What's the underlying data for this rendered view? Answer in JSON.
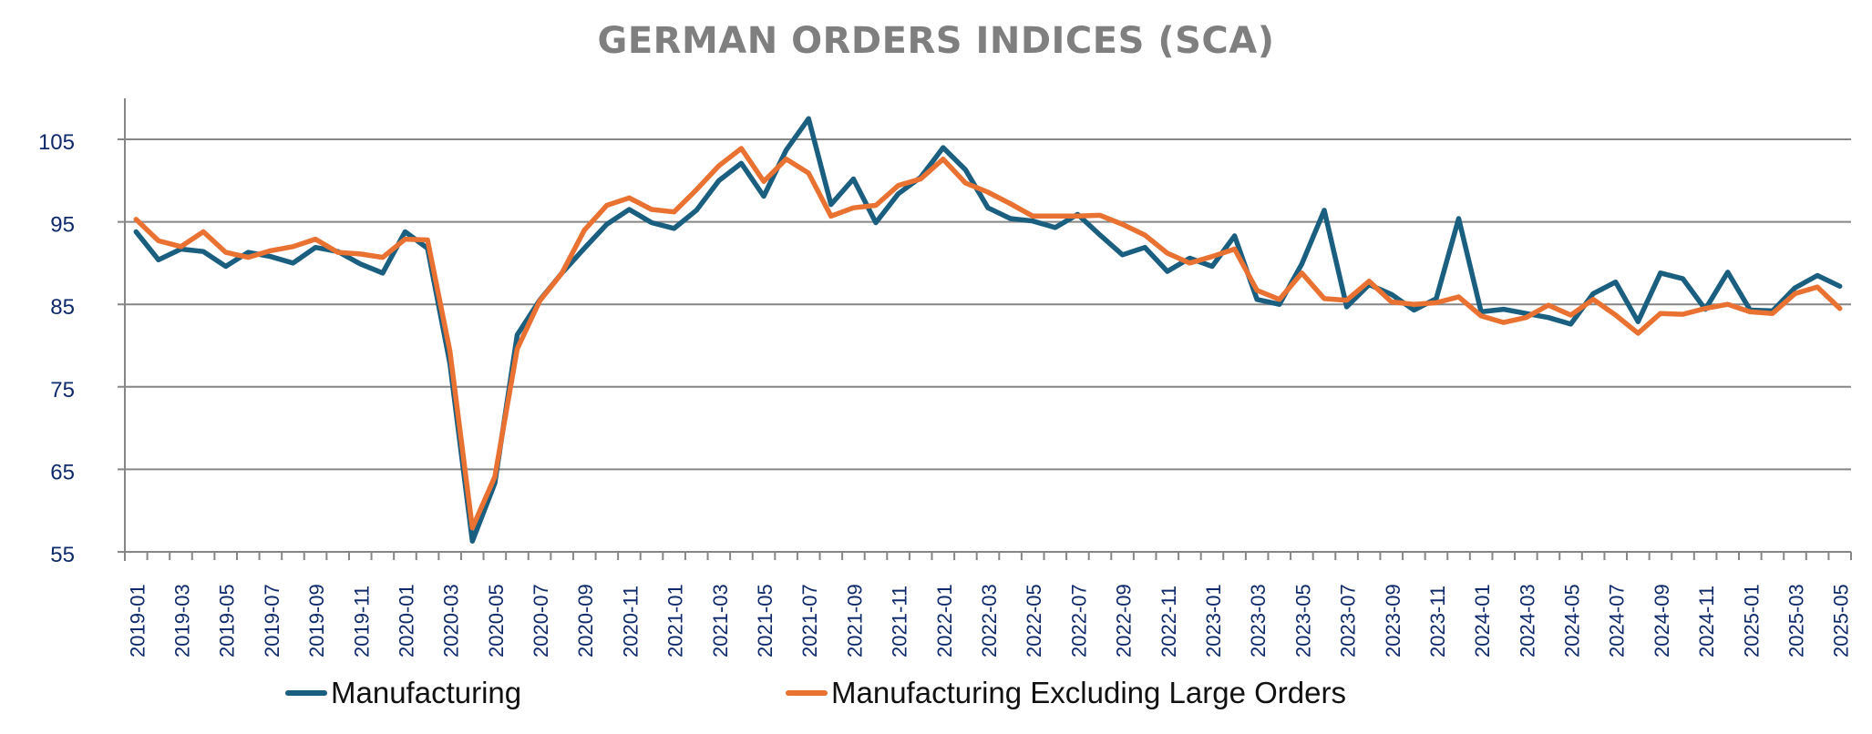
{
  "chart_data": {
    "type": "line",
    "title": "GERMAN ORDERS INDICES (SCA)",
    "xlabel": "",
    "ylabel": "",
    "ylim": [
      55,
      110
    ],
    "yticks": [
      55,
      65,
      75,
      85,
      95,
      105
    ],
    "grid": true,
    "legend_position": "bottom",
    "x": [
      "2019-01",
      "2019-02",
      "2019-03",
      "2019-04",
      "2019-05",
      "2019-06",
      "2019-07",
      "2019-08",
      "2019-09",
      "2019-10",
      "2019-11",
      "2019-12",
      "2020-01",
      "2020-02",
      "2020-03",
      "2020-04",
      "2020-05",
      "2020-06",
      "2020-07",
      "2020-08",
      "2020-09",
      "2020-10",
      "2020-11",
      "2020-12",
      "2021-01",
      "2021-02",
      "2021-03",
      "2021-04",
      "2021-05",
      "2021-06",
      "2021-07",
      "2021-08",
      "2021-09",
      "2021-10",
      "2021-11",
      "2021-12",
      "2022-01",
      "2022-02",
      "2022-03",
      "2022-04",
      "2022-05",
      "2022-06",
      "2022-07",
      "2022-08",
      "2022-09",
      "2022-10",
      "2022-11",
      "2022-12",
      "2023-01",
      "2023-02",
      "2023-03",
      "2023-04",
      "2023-05",
      "2023-06",
      "2023-07",
      "2023-08",
      "2023-09",
      "2023-10",
      "2023-11",
      "2023-12",
      "2024-01",
      "2024-02",
      "2024-03",
      "2024-04",
      "2024-05",
      "2024-06",
      "2024-07",
      "2024-08",
      "2024-09",
      "2024-10",
      "2024-11",
      "2024-12",
      "2025-01",
      "2025-02",
      "2025-03",
      "2025-04",
      "2025-05"
    ],
    "series": [
      {
        "name": "Manufacturing",
        "color": "#1a5e80",
        "values": [
          93.8,
          90.4,
          91.7,
          91.4,
          89.6,
          91.3,
          90.8,
          90.0,
          91.9,
          91.4,
          89.9,
          88.8,
          93.8,
          91.8,
          77.8,
          56.3,
          63.3,
          81.3,
          85.5,
          88.8,
          91.8,
          94.7,
          96.5,
          94.9,
          94.2,
          96.4,
          100.0,
          102.1,
          98.1,
          103.7,
          107.5,
          97.1,
          100.2,
          94.9,
          98.4,
          100.4,
          104.0,
          101.3,
          96.7,
          95.4,
          95.1,
          94.3,
          95.9,
          93.4,
          91.0,
          91.9,
          89.0,
          90.6,
          89.6,
          93.3,
          85.6,
          85.0,
          89.9,
          96.4,
          84.7,
          87.4,
          86.2,
          84.3,
          85.7,
          95.4,
          84.1,
          84.4,
          83.9,
          83.4,
          82.6,
          86.3,
          87.7,
          82.9,
          88.8,
          88.1,
          84.4,
          88.9,
          84.3,
          84.2,
          87.0,
          88.5,
          87.2
        ]
      },
      {
        "name": "Manufacturing Excluding Large Orders",
        "color": "#e97132",
        "values": [
          95.3,
          92.7,
          92.0,
          93.8,
          91.3,
          90.7,
          91.5,
          92.0,
          92.9,
          91.3,
          91.1,
          90.7,
          92.9,
          92.8,
          79.3,
          57.9,
          64.1,
          79.6,
          85.4,
          88.8,
          94.0,
          97.0,
          97.9,
          96.5,
          96.2,
          98.9,
          101.8,
          103.9,
          99.9,
          102.6,
          100.9,
          95.7,
          96.7,
          97.0,
          99.4,
          100.2,
          102.6,
          99.7,
          98.6,
          97.2,
          95.7,
          95.7,
          95.7,
          95.8,
          94.7,
          93.4,
          91.2,
          90.0,
          90.8,
          91.7,
          86.7,
          85.6,
          88.8,
          85.7,
          85.5,
          87.8,
          85.3,
          85.0,
          85.2,
          85.9,
          83.6,
          82.8,
          83.4,
          84.9,
          83.7,
          85.6,
          83.7,
          81.5,
          83.9,
          83.8,
          84.5,
          85.0,
          84.1,
          83.9,
          86.3,
          87.1,
          84.5
        ]
      }
    ]
  }
}
